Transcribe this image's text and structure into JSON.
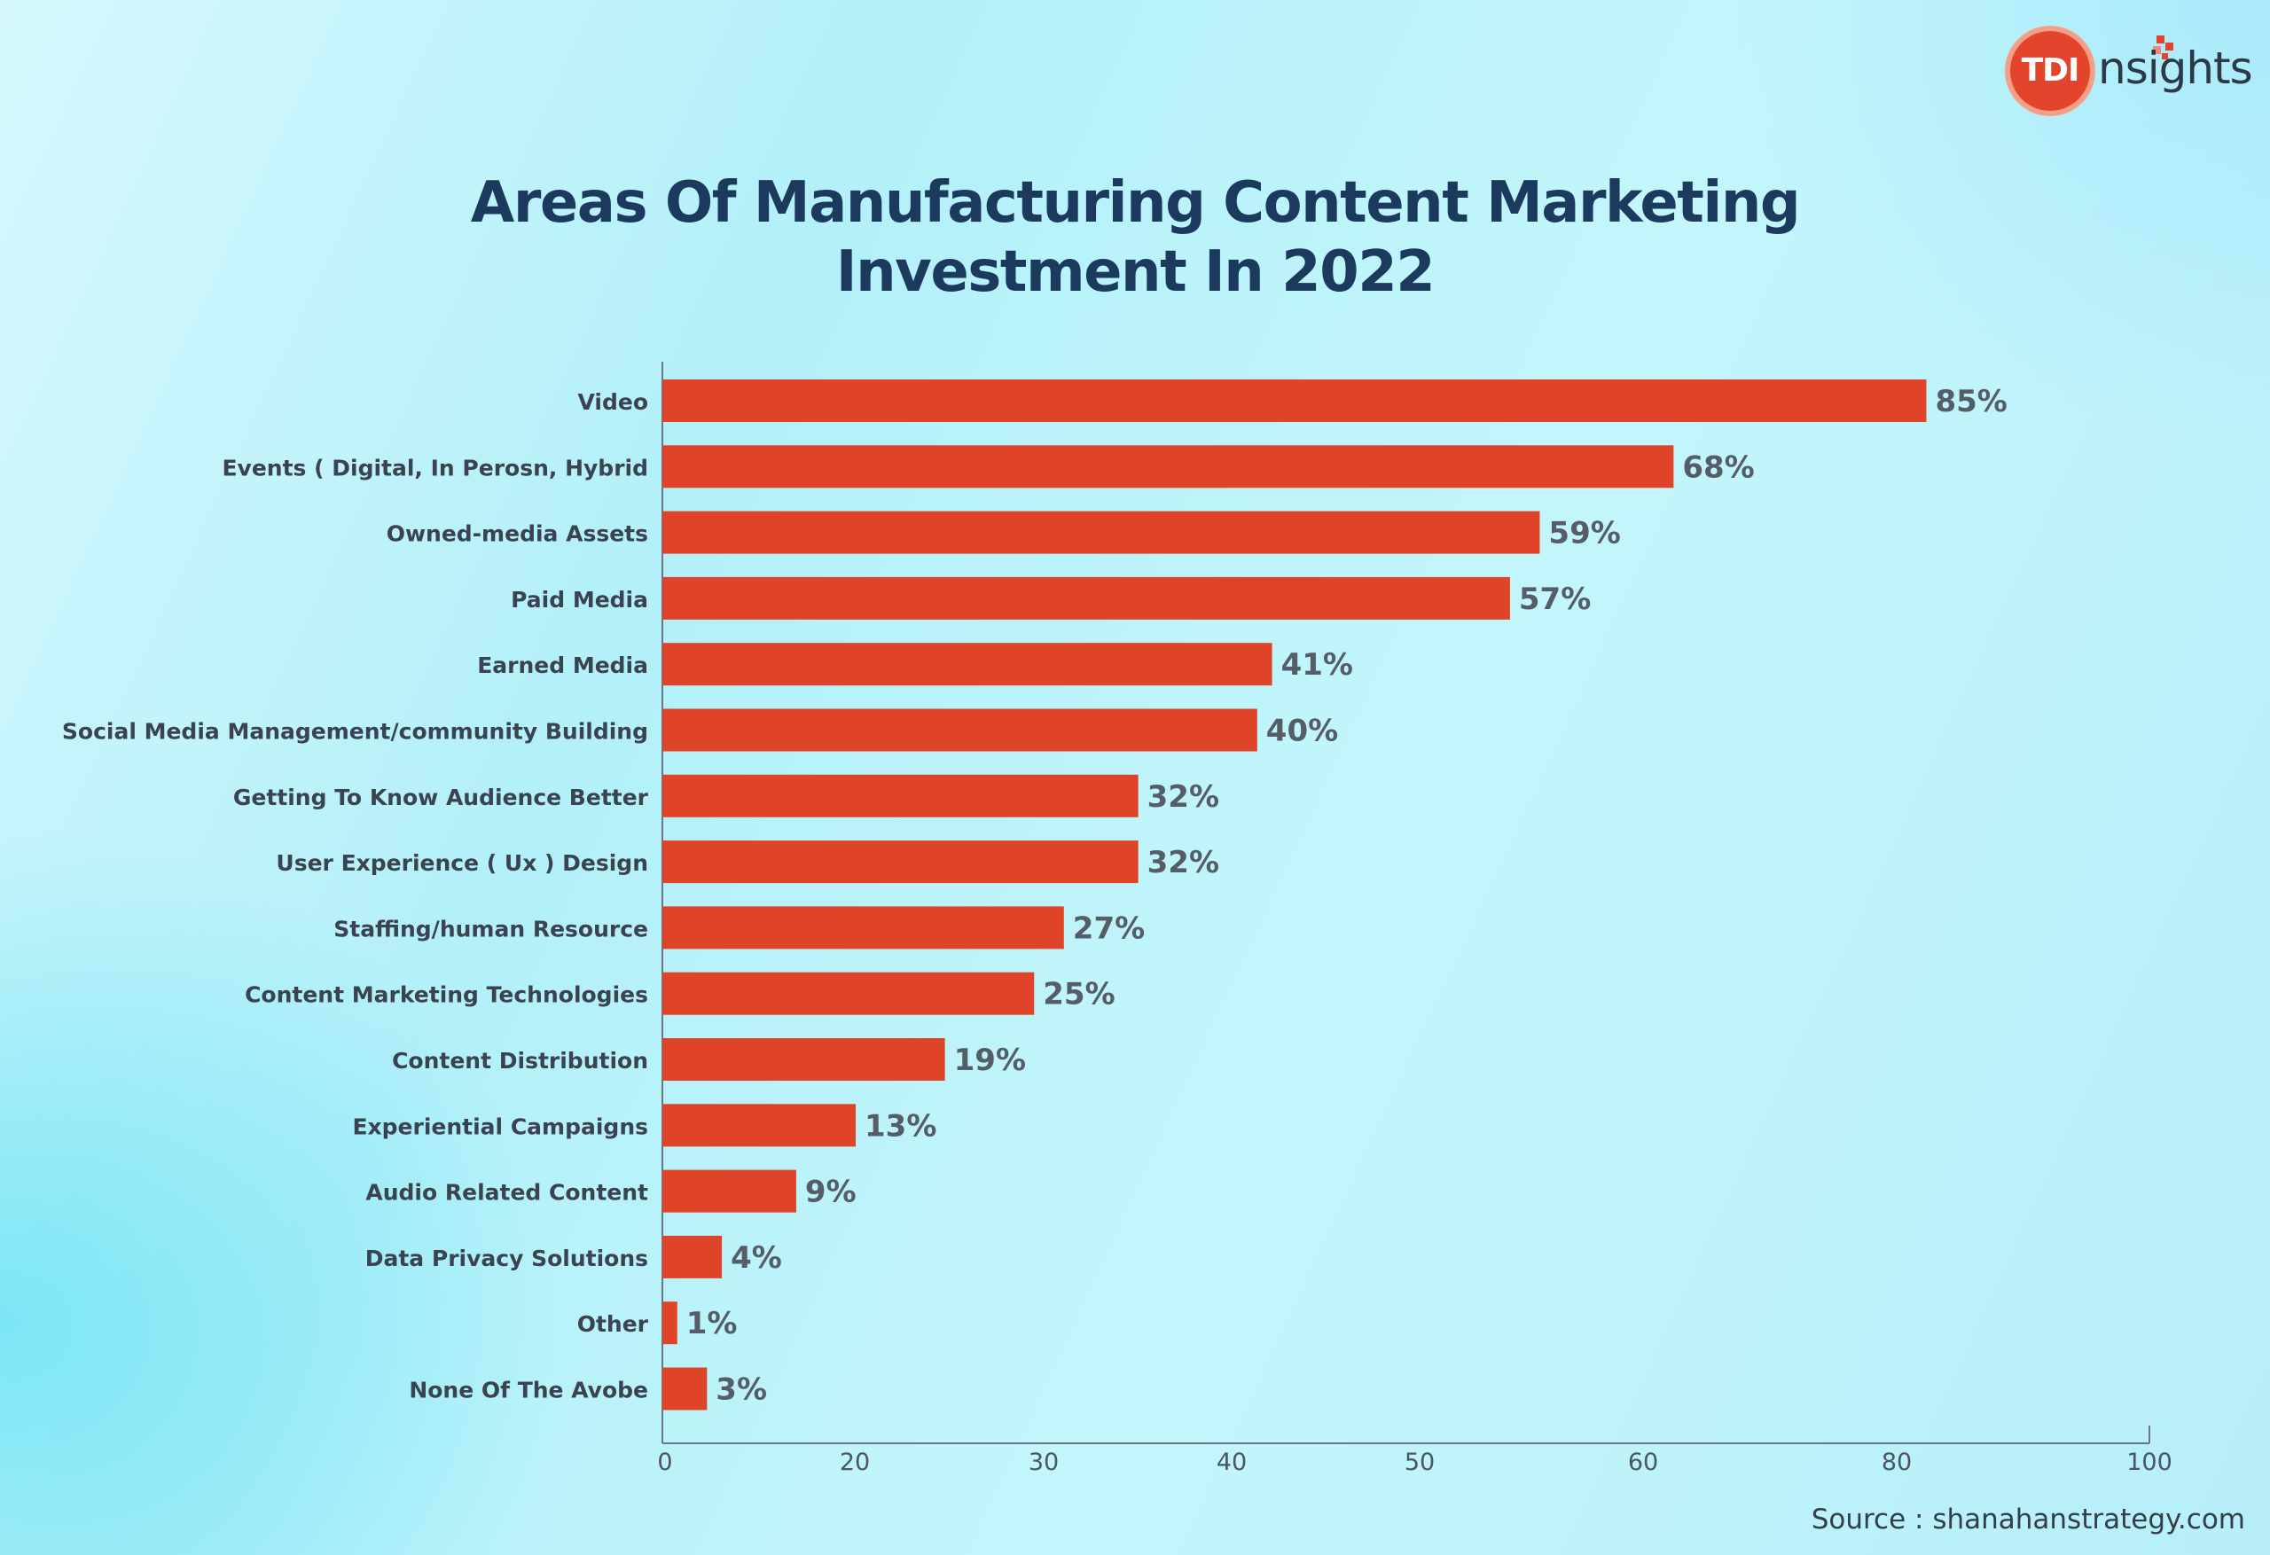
{
  "logo": {
    "mark_text": "TDI",
    "word_text": "nsights",
    "brand_color": "#e2452c"
  },
  "title_lines": [
    "Areas Of Manufacturing Content Marketing",
    "Investment In 2022"
  ],
  "source": "Source : shanahanstrategy.com",
  "colors": {
    "bar": "#df4428",
    "label": "#3a4450",
    "value": "#555d66",
    "title": "#1c3a5e",
    "axis": "#6b7780"
  },
  "chart_data": {
    "type": "bar",
    "orientation": "horizontal",
    "title": "Areas Of Manufacturing Content Marketing Investment In 2022",
    "categories": [
      "Video",
      "Events ( Digital, In Perosn, Hybrid",
      "Owned-media Assets",
      "Paid Media",
      "Earned Media",
      "Social Media Management/community Building",
      "Getting To Know Audience Better",
      "User Experience ( Ux ) Design",
      "Staffing/human Resource",
      "Content Marketing Technologies",
      "Content Distribution",
      "Experiential Campaigns",
      "Audio Related Content",
      "Data Privacy Solutions",
      "Other",
      "None Of The Avobe"
    ],
    "values": [
      85,
      68,
      59,
      57,
      41,
      40,
      32,
      32,
      27,
      25,
      19,
      13,
      9,
      4,
      1,
      3
    ],
    "value_labels": [
      "85%",
      "68%",
      "59%",
      "57%",
      "41%",
      "40%",
      "32%",
      "32%",
      "27%",
      "25%",
      "19%",
      "13%",
      "9%",
      "4%",
      "1%",
      "3%"
    ],
    "x_ticks": [
      0,
      20,
      30,
      40,
      50,
      60,
      80,
      100
    ],
    "x_tick_labels": [
      "0",
      "20",
      "30",
      "40",
      "50",
      "60",
      "80",
      "100"
    ],
    "xlim": [
      0,
      100
    ],
    "xlabel": "",
    "ylabel": "",
    "grid": false,
    "legend": "none"
  }
}
